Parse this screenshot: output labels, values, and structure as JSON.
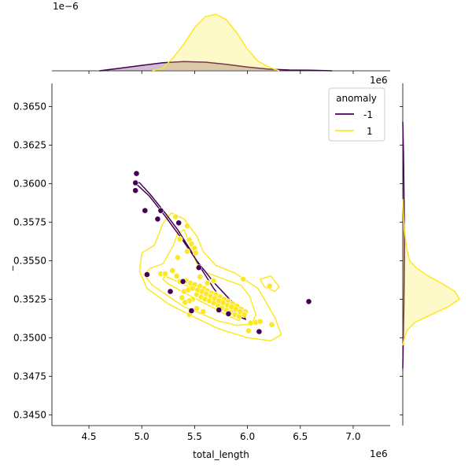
{
  "chart_data": {
    "type": "scatter",
    "xlabel": "total_length",
    "ylabel": "_",
    "x_offset_label": "1e6",
    "y_offset_label": "1e6",
    "top_marginal_offset_label": "1e−6",
    "xlim": [
      4.15,
      7.35
    ],
    "ylim": [
      0.3443,
      0.3665
    ],
    "x_ticks": [
      4.5,
      5.0,
      5.5,
      6.0,
      6.5,
      7.0
    ],
    "x_tick_labels": [
      "4.5",
      "5.0",
      "5.5",
      "6.0",
      "6.5",
      "7.0"
    ],
    "y_ticks": [
      0.345,
      0.3475,
      0.35,
      0.3525,
      0.355,
      0.3575,
      0.36,
      0.3625,
      0.365
    ],
    "y_tick_labels": [
      "0.3450",
      "0.3475",
      "0.3500",
      "0.3525",
      "0.3550",
      "0.3575",
      "0.3600",
      "0.3625",
      "0.3650"
    ],
    "grid": false,
    "legend": {
      "title": "anomaly",
      "placement": "top-right",
      "entries": [
        {
          "label": "-1",
          "color": "#440154"
        },
        {
          "label": "1",
          "color": "#fde725"
        }
      ]
    },
    "series": [
      {
        "name": "-1",
        "color": "#440154",
        "points": [
          [
            4.95,
            0.36065
          ],
          [
            4.94,
            0.36005
          ],
          [
            4.94,
            0.35955
          ],
          [
            5.03,
            0.35825
          ],
          [
            5.18,
            0.35825
          ],
          [
            5.15,
            0.3577
          ],
          [
            5.35,
            0.35745
          ],
          [
            5.05,
            0.3541
          ],
          [
            5.27,
            0.353
          ],
          [
            5.39,
            0.35365
          ],
          [
            5.54,
            0.35455
          ],
          [
            5.47,
            0.35175
          ],
          [
            5.73,
            0.3518
          ],
          [
            5.82,
            0.35155
          ],
          [
            6.11,
            0.3504
          ],
          [
            6.58,
            0.35235
          ]
        ]
      },
      {
        "name": "1",
        "color": "#fde725",
        "points": [
          [
            5.32,
            0.35785
          ],
          [
            5.43,
            0.35725
          ],
          [
            5.45,
            0.35635
          ],
          [
            5.47,
            0.3561
          ],
          [
            5.36,
            0.3564
          ],
          [
            5.5,
            0.3558
          ],
          [
            5.43,
            0.3556
          ],
          [
            5.51,
            0.3555
          ],
          [
            5.34,
            0.3552
          ],
          [
            5.18,
            0.35415
          ],
          [
            5.22,
            0.35415
          ],
          [
            5.29,
            0.35435
          ],
          [
            5.33,
            0.354
          ],
          [
            5.36,
            0.35365
          ],
          [
            5.42,
            0.3537
          ],
          [
            5.46,
            0.35355
          ],
          [
            5.5,
            0.35345
          ],
          [
            5.55,
            0.35335
          ],
          [
            5.59,
            0.3532
          ],
          [
            5.62,
            0.35305
          ],
          [
            5.66,
            0.3529
          ],
          [
            5.7,
            0.3528
          ],
          [
            5.74,
            0.35265
          ],
          [
            5.78,
            0.3525
          ],
          [
            5.82,
            0.35235
          ],
          [
            5.86,
            0.3522
          ],
          [
            5.9,
            0.35205
          ],
          [
            5.94,
            0.35185
          ],
          [
            5.98,
            0.3517
          ],
          [
            5.52,
            0.3528
          ],
          [
            5.56,
            0.35265
          ],
          [
            5.6,
            0.3525
          ],
          [
            5.64,
            0.3524
          ],
          [
            5.68,
            0.35225
          ],
          [
            5.72,
            0.3521
          ],
          [
            5.76,
            0.35195
          ],
          [
            5.8,
            0.3518
          ],
          [
            5.84,
            0.35165
          ],
          [
            5.88,
            0.3515
          ],
          [
            5.92,
            0.3514
          ],
          [
            5.48,
            0.3525
          ],
          [
            5.45,
            0.3524
          ],
          [
            5.41,
            0.3523
          ],
          [
            5.38,
            0.3526
          ],
          [
            5.4,
            0.353
          ],
          [
            5.44,
            0.3531
          ],
          [
            5.48,
            0.3532
          ],
          [
            5.53,
            0.3531
          ],
          [
            5.57,
            0.353
          ],
          [
            5.61,
            0.35285
          ],
          [
            5.65,
            0.3527
          ],
          [
            5.69,
            0.35255
          ],
          [
            5.73,
            0.3524
          ],
          [
            5.77,
            0.35225
          ],
          [
            5.81,
            0.3521
          ],
          [
            5.85,
            0.352
          ],
          [
            5.89,
            0.35185
          ],
          [
            5.93,
            0.3517
          ],
          [
            5.97,
            0.3515
          ],
          [
            6.03,
            0.35095
          ],
          [
            6.08,
            0.351
          ],
          [
            6.12,
            0.35105
          ],
          [
            6.23,
            0.35085
          ],
          [
            6.01,
            0.35045
          ],
          [
            5.96,
            0.3538
          ],
          [
            6.21,
            0.35335
          ],
          [
            5.68,
            0.3537
          ],
          [
            5.62,
            0.35355
          ],
          [
            5.55,
            0.35395
          ],
          [
            5.45,
            0.3515
          ],
          [
            5.52,
            0.3519
          ],
          [
            5.58,
            0.3517
          ]
        ]
      }
    ],
    "top_marginal": {
      "-1": [
        [
          4.6,
          0.0
        ],
        [
          4.8,
          0.05
        ],
        [
          5.0,
          0.1
        ],
        [
          5.2,
          0.15
        ],
        [
          5.4,
          0.17
        ],
        [
          5.6,
          0.16
        ],
        [
          5.8,
          0.12
        ],
        [
          6.0,
          0.07
        ],
        [
          6.2,
          0.03
        ],
        [
          6.4,
          0.015
        ],
        [
          6.6,
          0.01
        ],
        [
          6.8,
          0.0
        ]
      ],
      "1": [
        [
          5.1,
          0.0
        ],
        [
          5.2,
          0.05
        ],
        [
          5.3,
          0.25
        ],
        [
          5.4,
          0.5
        ],
        [
          5.5,
          0.8
        ],
        [
          5.6,
          1.0
        ],
        [
          5.7,
          1.05
        ],
        [
          5.8,
          0.95
        ],
        [
          5.9,
          0.7
        ],
        [
          6.0,
          0.4
        ],
        [
          6.1,
          0.18
        ],
        [
          6.2,
          0.07
        ],
        [
          6.3,
          0.0
        ]
      ]
    },
    "right_marginal": {
      "-1": [
        [
          0.348,
          0.0
        ],
        [
          0.35,
          0.01
        ],
        [
          0.352,
          0.02
        ],
        [
          0.354,
          0.025
        ],
        [
          0.356,
          0.03
        ],
        [
          0.358,
          0.025
        ],
        [
          0.36,
          0.02
        ],
        [
          0.362,
          0.012
        ],
        [
          0.364,
          0.0
        ]
      ],
      "1": [
        [
          0.3495,
          0.0
        ],
        [
          0.35,
          0.03
        ],
        [
          0.3505,
          0.08
        ],
        [
          0.351,
          0.22
        ],
        [
          0.3515,
          0.5
        ],
        [
          0.352,
          0.8
        ],
        [
          0.3525,
          1.0
        ],
        [
          0.353,
          0.92
        ],
        [
          0.3535,
          0.7
        ],
        [
          0.354,
          0.45
        ],
        [
          0.3545,
          0.25
        ],
        [
          0.355,
          0.12
        ],
        [
          0.356,
          0.06
        ],
        [
          0.357,
          0.03
        ],
        [
          0.358,
          0.01
        ],
        [
          0.359,
          0.0
        ]
      ]
    },
    "contours": {
      "-1": [
        [
          [
            4.93,
            0.3601
          ],
          [
            4.98,
            0.36005
          ],
          [
            5.08,
            0.3593
          ],
          [
            5.22,
            0.3581
          ],
          [
            5.34,
            0.357
          ],
          [
            5.45,
            0.3558
          ],
          [
            5.56,
            0.3545
          ],
          [
            5.68,
            0.3532
          ],
          [
            5.79,
            0.3522
          ],
          [
            5.91,
            0.3514
          ],
          [
            5.98,
            0.3512
          ],
          [
            5.96,
            0.3517
          ],
          [
            5.83,
            0.3525
          ],
          [
            5.68,
            0.3536
          ],
          [
            5.52,
            0.355
          ],
          [
            5.38,
            0.3564
          ],
          [
            5.22,
            0.3579
          ],
          [
            5.07,
            0.3592
          ],
          [
            4.96,
            0.3599
          ],
          [
            4.93,
            0.3601
          ]
        ]
      ],
      "1": [
        [
          [
            5.22,
            0.354
          ],
          [
            5.35,
            0.3536
          ],
          [
            5.48,
            0.3532
          ],
          [
            5.62,
            0.3527
          ],
          [
            5.76,
            0.3522
          ],
          [
            5.88,
            0.3517
          ],
          [
            5.95,
            0.3514
          ],
          [
            5.92,
            0.3511
          ],
          [
            5.8,
            0.3515
          ],
          [
            5.66,
            0.352
          ],
          [
            5.52,
            0.3525
          ],
          [
            5.38,
            0.353
          ],
          [
            5.25,
            0.3535
          ],
          [
            5.2,
            0.3538
          ],
          [
            5.22,
            0.354
          ]
        ],
        [
          [
            5.08,
            0.3545
          ],
          [
            5.2,
            0.3548
          ],
          [
            5.3,
            0.356
          ],
          [
            5.34,
            0.3568
          ],
          [
            5.4,
            0.357
          ],
          [
            5.46,
            0.356
          ],
          [
            5.52,
            0.3548
          ],
          [
            5.62,
            0.3542
          ],
          [
            5.78,
            0.3538
          ],
          [
            5.94,
            0.3534
          ],
          [
            6.02,
            0.3527
          ],
          [
            6.08,
            0.3515
          ],
          [
            6.04,
            0.3509
          ],
          [
            5.9,
            0.3508
          ],
          [
            5.72,
            0.3511
          ],
          [
            5.55,
            0.3516
          ],
          [
            5.4,
            0.352
          ],
          [
            5.25,
            0.3527
          ],
          [
            5.1,
            0.3534
          ],
          [
            5.02,
            0.3541
          ],
          [
            5.08,
            0.3545
          ]
        ],
        [
          [
            5.0,
            0.3555
          ],
          [
            5.12,
            0.356
          ],
          [
            5.2,
            0.3574
          ],
          [
            5.28,
            0.3581
          ],
          [
            5.4,
            0.3577
          ],
          [
            5.52,
            0.3566
          ],
          [
            5.58,
            0.3556
          ],
          [
            5.7,
            0.3547
          ],
          [
            5.88,
            0.3542
          ],
          [
            6.1,
            0.3532
          ],
          [
            6.26,
            0.3513
          ],
          [
            6.32,
            0.3502
          ],
          [
            6.22,
            0.3498
          ],
          [
            6.0,
            0.35
          ],
          [
            5.72,
            0.3506
          ],
          [
            5.48,
            0.3514
          ],
          [
            5.25,
            0.3522
          ],
          [
            5.05,
            0.3532
          ],
          [
            4.98,
            0.3543
          ],
          [
            5.0,
            0.3555
          ]
        ],
        [
          [
            6.12,
            0.3538
          ],
          [
            6.22,
            0.354
          ],
          [
            6.3,
            0.3533
          ],
          [
            6.26,
            0.353
          ],
          [
            6.16,
            0.3533
          ],
          [
            6.12,
            0.3538
          ]
        ]
      ]
    }
  }
}
